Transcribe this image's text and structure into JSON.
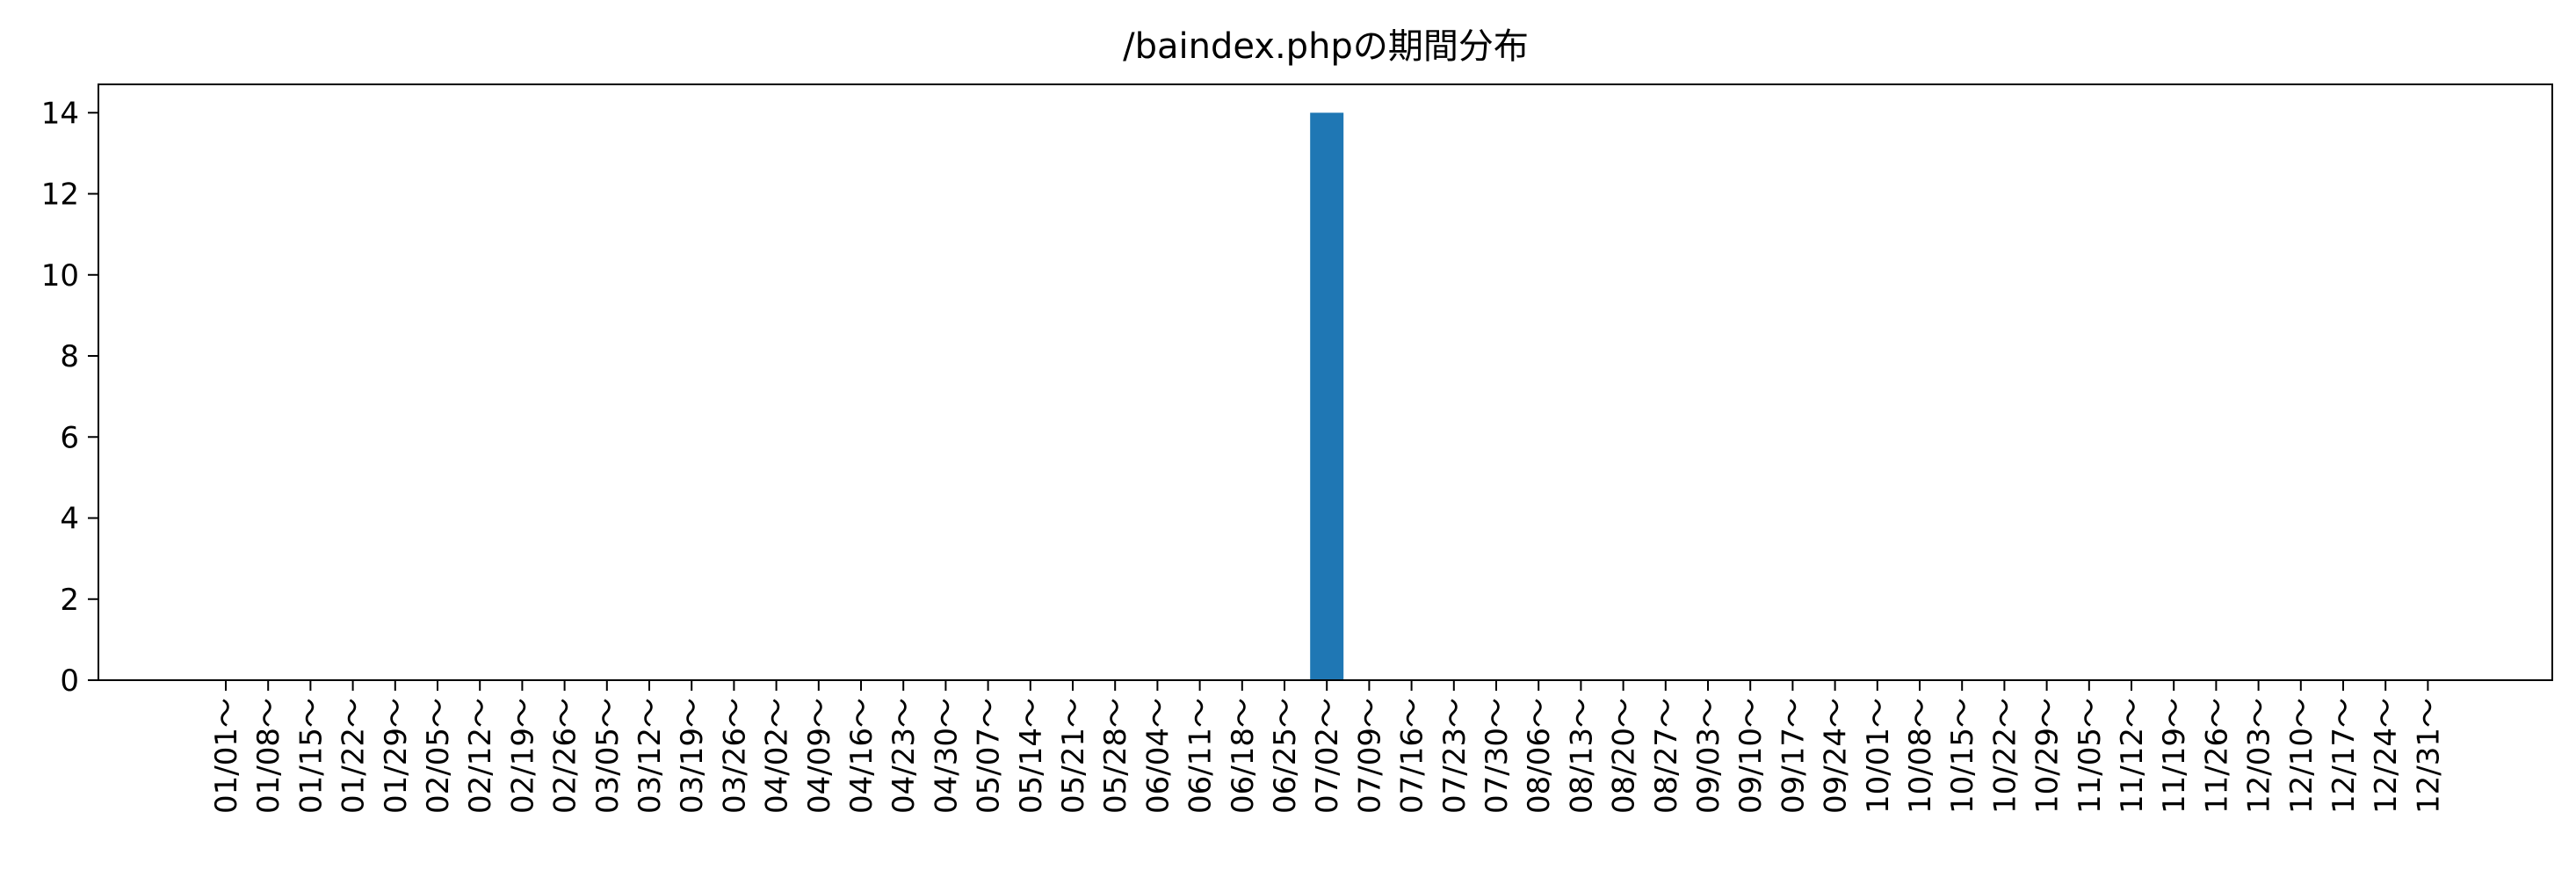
{
  "chart_data": {
    "type": "bar",
    "title": "/baindex.phpの期間分布",
    "xlabel": "",
    "ylabel": "",
    "ylim": [
      0,
      14.7
    ],
    "yticks": [
      0,
      2,
      4,
      6,
      8,
      10,
      12,
      14
    ],
    "grid": false,
    "legend": "none",
    "bar_color": "#1f77b4",
    "categories": [
      "01/01～",
      "01/08～",
      "01/15～",
      "01/22～",
      "01/29～",
      "02/05～",
      "02/12～",
      "02/19～",
      "02/26～",
      "03/05～",
      "03/12～",
      "03/19～",
      "03/26～",
      "04/02～",
      "04/09～",
      "04/16～",
      "04/23～",
      "04/30～",
      "05/07～",
      "05/14～",
      "05/21～",
      "05/28～",
      "06/04～",
      "06/11～",
      "06/18～",
      "06/25～",
      "07/02～",
      "07/09～",
      "07/16～",
      "07/23～",
      "07/30～",
      "08/06～",
      "08/13～",
      "08/20～",
      "08/27～",
      "09/03～",
      "09/10～",
      "09/17～",
      "09/24～",
      "10/01～",
      "10/08～",
      "10/15～",
      "10/22～",
      "10/29～",
      "11/05～",
      "11/12～",
      "11/19～",
      "11/26～",
      "12/03～",
      "12/10～",
      "12/17～",
      "12/24～",
      "12/31～"
    ],
    "values": [
      0,
      0,
      0,
      0,
      0,
      0,
      0,
      0,
      0,
      0,
      0,
      0,
      0,
      0,
      0,
      0,
      0,
      0,
      0,
      0,
      0,
      0,
      0,
      0,
      0,
      0,
      14,
      0,
      0,
      0,
      0,
      0,
      0,
      0,
      0,
      0,
      0,
      0,
      0,
      0,
      0,
      0,
      0,
      0,
      0,
      0,
      0,
      0,
      0,
      0,
      0,
      0,
      0
    ]
  }
}
